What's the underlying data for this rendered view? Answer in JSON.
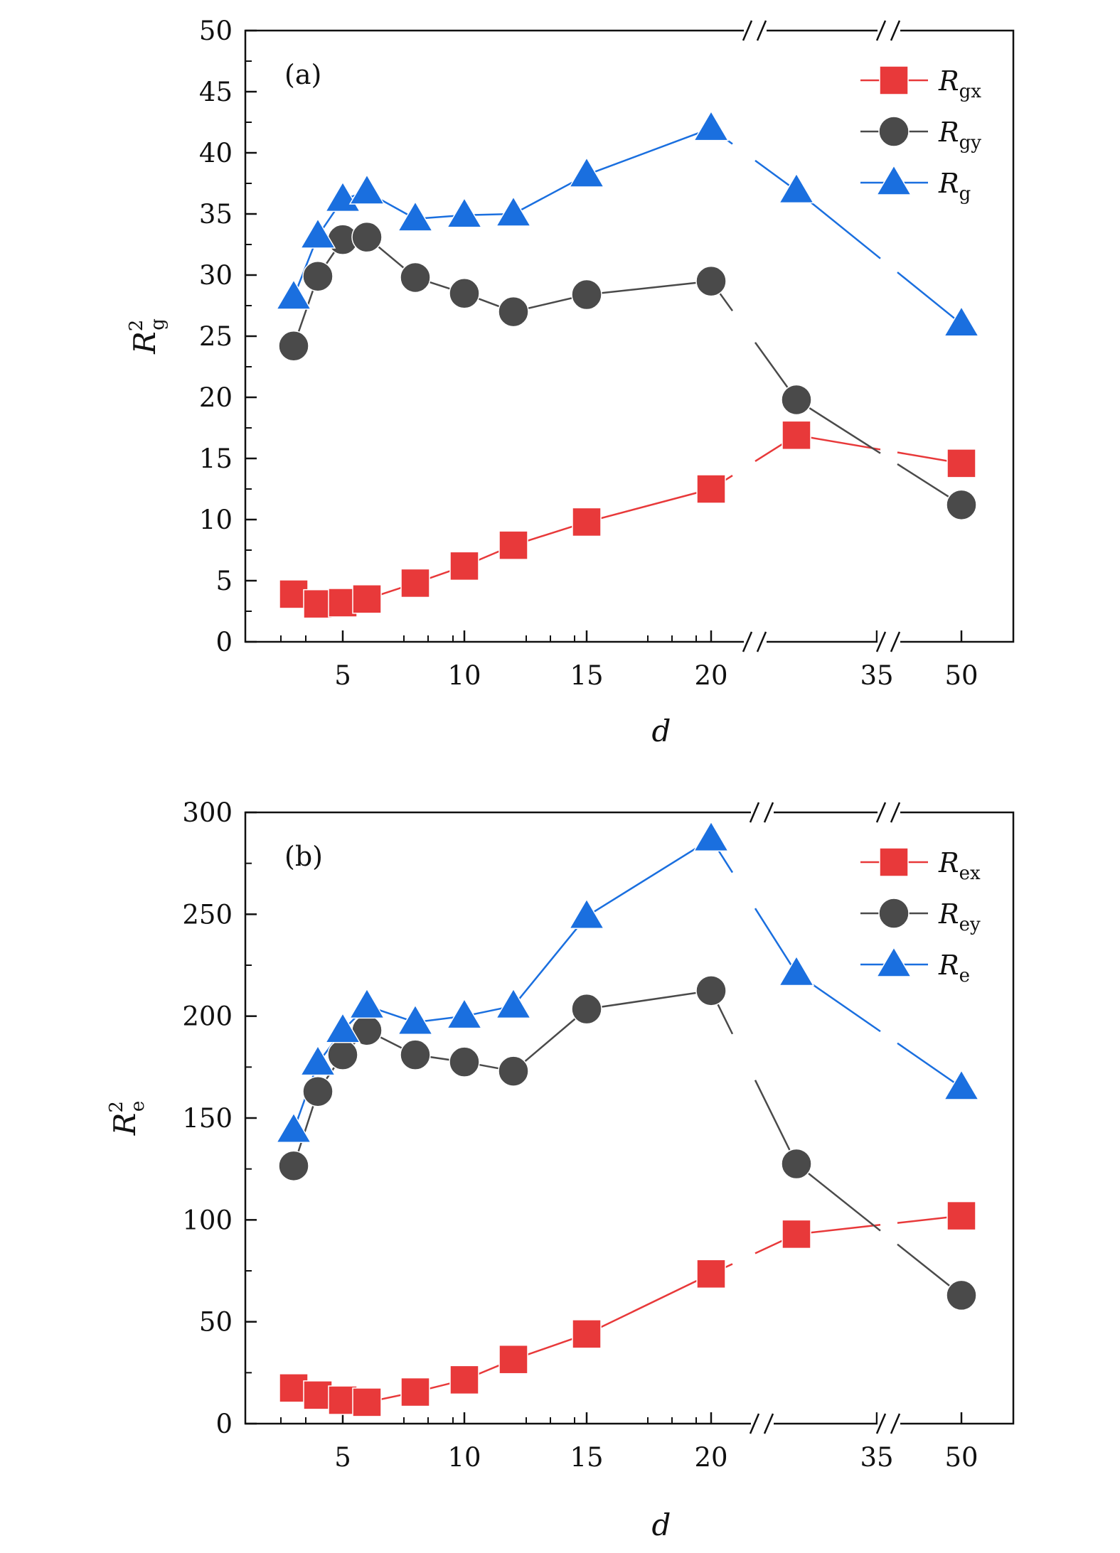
{
  "chart_data": [
    {
      "type": "line",
      "panel_label": "(a)",
      "xlabel": "d",
      "ylabel": {
        "base": "R",
        "sup": "2",
        "sub": "g"
      },
      "ylim": [
        0,
        50
      ],
      "yticks": [
        "0",
        "5",
        "10",
        "15",
        "20",
        "25",
        "30",
        "35",
        "40",
        "45",
        "50"
      ],
      "xticks": [
        "5",
        "10",
        "15",
        "20",
        "35",
        "50"
      ],
      "axis_breaks": [
        "between 20 and 35",
        "between 35 and 50"
      ],
      "x": [
        "3",
        "4",
        "5",
        "6",
        "8",
        "10",
        "12",
        "15",
        "20",
        "30",
        "50"
      ],
      "series": [
        {
          "name": "R_gx",
          "legend_base": "R",
          "legend_sub": "gx",
          "color": "#e8393a",
          "marker": "square",
          "values": [
            3.9,
            3.1,
            3.2,
            3.5,
            4.8,
            6.2,
            7.9,
            9.8,
            12.5,
            16.9,
            14.6
          ]
        },
        {
          "name": "R_gy",
          "legend_base": "R",
          "legend_sub": "gy",
          "color": "#4a4a4a",
          "marker": "circle",
          "values": [
            24.2,
            29.9,
            32.9,
            33.1,
            29.8,
            28.5,
            27.0,
            28.4,
            29.5,
            19.8,
            11.2
          ]
        },
        {
          "name": "R_g",
          "legend_base": "R",
          "legend_sub": "g",
          "color": "#1a6fdf",
          "marker": "triangle",
          "values": [
            28.2,
            33.2,
            36.2,
            36.8,
            34.6,
            34.9,
            35.0,
            38.2,
            42.0,
            36.9,
            26.0
          ]
        }
      ]
    },
    {
      "type": "line",
      "panel_label": "(b)",
      "xlabel": "d",
      "ylabel": {
        "base": "R",
        "sup": "2",
        "sub": "e"
      },
      "ylim": [
        0,
        300
      ],
      "yticks": [
        "0",
        "50",
        "100",
        "150",
        "200",
        "250",
        "300"
      ],
      "xticks": [
        "5",
        "10",
        "15",
        "20",
        "35",
        "50"
      ],
      "axis_breaks": [
        "between 20 and 35",
        "between 35 and 50"
      ],
      "x": [
        "3",
        "4",
        "5",
        "6",
        "8",
        "10",
        "12",
        "15",
        "20",
        "30",
        "50"
      ],
      "series": [
        {
          "name": "R_ex",
          "legend_base": "R",
          "legend_sub": "ex",
          "color": "#e8393a",
          "marker": "square",
          "values": [
            17.5,
            14.0,
            11.5,
            10.5,
            15.5,
            21.5,
            31.5,
            44.0,
            73.5,
            93.0,
            102.0
          ]
        },
        {
          "name": "R_ey",
          "legend_base": "R",
          "legend_sub": "ey",
          "color": "#4a4a4a",
          "marker": "circle",
          "values": [
            126.5,
            163.0,
            181.0,
            193.0,
            181.0,
            177.5,
            173.0,
            203.5,
            212.5,
            127.5,
            63.0
          ]
        },
        {
          "name": "R_e",
          "legend_base": "R",
          "legend_sub": "e",
          "color": "#1a6fdf",
          "marker": "triangle",
          "values": [
            144.0,
            177.0,
            193.0,
            205.0,
            197.0,
            200.0,
            205.0,
            249.0,
            287.0,
            221.0,
            165.0
          ]
        }
      ]
    }
  ]
}
